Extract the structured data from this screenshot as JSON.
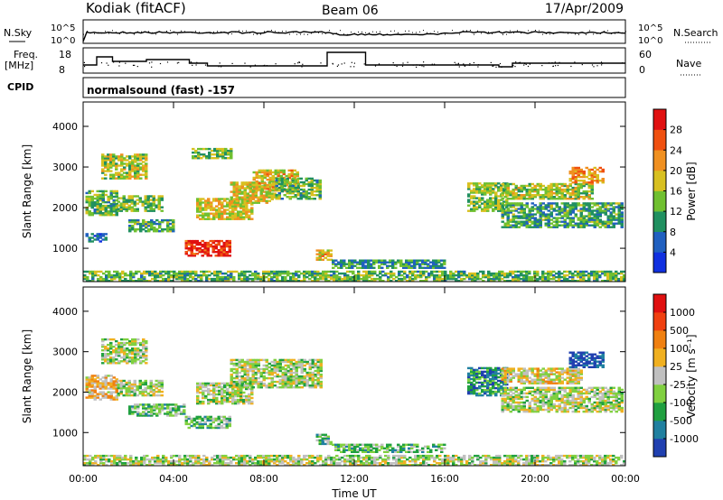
{
  "header": {
    "station": "Kodiak (fitACF)",
    "beam": "Beam 06",
    "date": "17/Apr/2009"
  },
  "nsky_panel": {
    "left_label": "N.Sky",
    "right_label": "N.Search",
    "left_ticks": [
      "10^5",
      "10^0"
    ],
    "right_ticks": [
      "10^5",
      "10^0"
    ]
  },
  "freq_panel": {
    "left_label_1": "Freq.",
    "left_label_2": "[MHz]",
    "right_label": "Nave",
    "left_ticks": [
      "18",
      "8"
    ],
    "right_ticks": [
      "60",
      "0"
    ]
  },
  "cpid": {
    "label": "CPID",
    "value": "normalsound (fast) -157"
  },
  "chart_data": [
    {
      "type": "heatmap",
      "ylabel": "Slant Range [km]",
      "xlabel": "",
      "x_ticks": [
        "00:00",
        "04:00",
        "08:00",
        "12:00",
        "16:00",
        "20:00",
        "00:00"
      ],
      "x_range_hours": [
        0,
        24
      ],
      "y_ticks": [
        1000,
        2000,
        3000,
        4000
      ],
      "ylim": [
        180,
        4600
      ],
      "colorbar": {
        "label": "Power [dB]",
        "ticks": [
          4,
          8,
          12,
          16,
          20,
          24,
          28
        ],
        "colors": [
          "#1030e0",
          "#2060c0",
          "#209060",
          "#70c030",
          "#d8c020",
          "#f09020",
          "#f05010",
          "#e01010"
        ]
      },
      "regions": [
        {
          "t0": 0.1,
          "t1": 1.5,
          "r0": 1800,
          "r1": 2400,
          "level": 0.4
        },
        {
          "t0": 0.8,
          "t1": 2.8,
          "r0": 2700,
          "r1": 3300,
          "level": 0.5
        },
        {
          "t0": 1.5,
          "t1": 3.5,
          "r0": 1900,
          "r1": 2300,
          "level": 0.45
        },
        {
          "t0": 2.0,
          "t1": 4.0,
          "r0": 1400,
          "r1": 1700,
          "level": 0.35
        },
        {
          "t0": 0.1,
          "t1": 1.0,
          "r0": 1150,
          "r1": 1350,
          "level": 0.2
        },
        {
          "t0": 4.5,
          "t1": 6.5,
          "r0": 800,
          "r1": 1200,
          "level": 0.9
        },
        {
          "t0": 4.8,
          "t1": 6.5,
          "r0": 3200,
          "r1": 3450,
          "level": 0.45
        },
        {
          "t0": 5.0,
          "t1": 7.5,
          "r0": 1700,
          "r1": 2200,
          "level": 0.55
        },
        {
          "t0": 6.5,
          "t1": 8.5,
          "r0": 2100,
          "r1": 2600,
          "level": 0.55
        },
        {
          "t0": 7.5,
          "t1": 9.5,
          "r0": 2400,
          "r1": 2900,
          "level": 0.6
        },
        {
          "t0": 8.5,
          "t1": 10.5,
          "r0": 2200,
          "r1": 2700,
          "level": 0.4
        },
        {
          "t0": 10.3,
          "t1": 11.0,
          "r0": 700,
          "r1": 950,
          "level": 0.6
        },
        {
          "t0": 11.0,
          "t1": 16.0,
          "r0": 500,
          "r1": 700,
          "level": 0.3
        },
        {
          "t0": 17.0,
          "t1": 18.8,
          "r0": 1900,
          "r1": 2600,
          "level": 0.45
        },
        {
          "t0": 18.5,
          "t1": 22.5,
          "r0": 2200,
          "r1": 2600,
          "level": 0.5
        },
        {
          "t0": 21.5,
          "t1": 23.0,
          "r0": 2600,
          "r1": 3000,
          "level": 0.7
        },
        {
          "t0": 18.5,
          "t1": 23.8,
          "r0": 1500,
          "r1": 2100,
          "level": 0.35
        },
        {
          "t0": 0.0,
          "t1": 24.0,
          "r0": 180,
          "r1": 420,
          "level": 0.4
        }
      ]
    },
    {
      "type": "heatmap",
      "ylabel": "Slant Range [km]",
      "xlabel": "Time UT",
      "x_ticks": [
        "00:00",
        "04:00",
        "08:00",
        "12:00",
        "16:00",
        "20:00",
        "00:00"
      ],
      "x_range_hours": [
        0,
        24
      ],
      "y_ticks": [
        1000,
        2000,
        3000,
        4000
      ],
      "ylim": [
        180,
        4600
      ],
      "colorbar": {
        "label": "Velocity [m s⁻¹]",
        "ticks": [
          "1000",
          "500",
          "100",
          "25",
          "-25",
          "-100",
          "-500",
          "-1000"
        ],
        "colors": [
          "#2040b0",
          "#2080a0",
          "#20a040",
          "#80d040",
          "#c0c0c0",
          "#f0b020",
          "#f08010",
          "#f04010",
          "#e01010"
        ]
      },
      "regions": [
        {
          "t0": 0.1,
          "t1": 1.5,
          "r0": 1800,
          "r1": 2400,
          "level": 0.6
        },
        {
          "t0": 0.8,
          "t1": 2.8,
          "r0": 2700,
          "r1": 3300,
          "level": 0.45
        },
        {
          "t0": 1.5,
          "t1": 3.5,
          "r0": 1900,
          "r1": 2300,
          "level": 0.45
        },
        {
          "t0": 2.0,
          "t1": 4.5,
          "r0": 1400,
          "r1": 1700,
          "level": 0.35
        },
        {
          "t0": 4.5,
          "t1": 6.5,
          "r0": 1100,
          "r1": 1400,
          "level": 0.35
        },
        {
          "t0": 5.0,
          "t1": 7.5,
          "r0": 1700,
          "r1": 2200,
          "level": 0.45
        },
        {
          "t0": 6.5,
          "t1": 10.5,
          "r0": 2100,
          "r1": 2800,
          "level": 0.45
        },
        {
          "t0": 10.3,
          "t1": 11.0,
          "r0": 700,
          "r1": 950,
          "level": 0.35
        },
        {
          "t0": 11.0,
          "t1": 16.0,
          "r0": 500,
          "r1": 700,
          "level": 0.35
        },
        {
          "t0": 17.0,
          "t1": 18.8,
          "r0": 1900,
          "r1": 2600,
          "level": 0.2
        },
        {
          "t0": 18.5,
          "t1": 22.0,
          "r0": 2200,
          "r1": 2600,
          "level": 0.55
        },
        {
          "t0": 21.5,
          "t1": 23.0,
          "r0": 2600,
          "r1": 3000,
          "level": 0.05
        },
        {
          "t0": 18.5,
          "t1": 23.8,
          "r0": 1500,
          "r1": 2100,
          "level": 0.45
        },
        {
          "t0": 0.0,
          "t1": 24.0,
          "r0": 180,
          "r1": 420,
          "level": 0.45
        }
      ]
    }
  ]
}
